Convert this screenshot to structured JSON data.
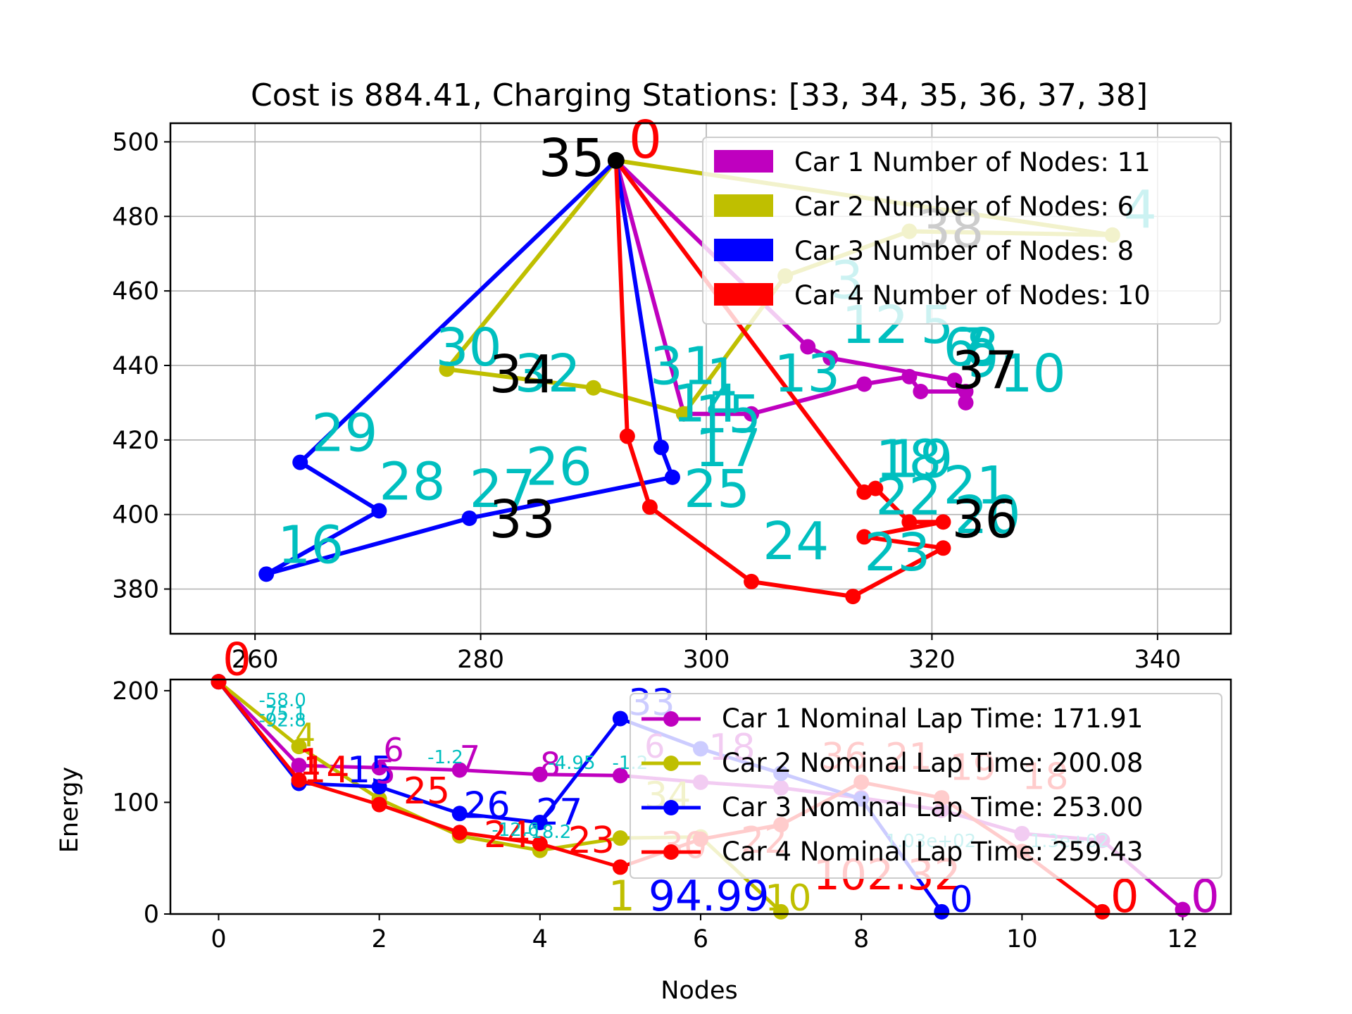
{
  "chart_data": [
    {
      "type": "scatter",
      "title": "Cost is 884.41, Charging Stations: [33, 34, 35, 36, 37, 38]",
      "xlabel": "",
      "ylabel": "",
      "xlim": [
        252.5,
        346.5
      ],
      "ylim": [
        368,
        505
      ],
      "xticks": [
        260,
        280,
        300,
        320,
        340
      ],
      "yticks": [
        380,
        400,
        420,
        440,
        460,
        480,
        500
      ],
      "grid": true,
      "legend_position": "top-right",
      "legend": [
        {
          "label": "Car 1 Number of Nodes: 11",
          "color": "#bf00bf"
        },
        {
          "label": "Car 2 Number of Nodes: 6",
          "color": "#bfbf00"
        },
        {
          "label": "Car 3 Number of Nodes: 8",
          "color": "#0000ff"
        },
        {
          "label": "Car 4 Number of Nodes: 10",
          "color": "#ff0000"
        }
      ],
      "depot": {
        "label": "0",
        "x": 292,
        "y": 495
      },
      "stations": [
        {
          "label": "33",
          "x": 280,
          "y": 398
        },
        {
          "label": "34",
          "x": 280,
          "y": 437
        },
        {
          "label": "35",
          "x": 292,
          "y": 495
        },
        {
          "label": "36",
          "x": 321,
          "y": 398
        },
        {
          "label": "37",
          "x": 321,
          "y": 438
        },
        {
          "label": "38",
          "x": 318,
          "y": 476
        }
      ],
      "series": [
        {
          "name": "Car 1 Number of Nodes: 11",
          "color": "#bf00bf",
          "route": [
            [
              292,
              495
            ],
            [
              309,
              445
            ],
            [
              311,
              442
            ],
            [
              322,
              436
            ],
            [
              323,
              430
            ],
            [
              323,
              433
            ],
            [
              319,
              433
            ],
            [
              318,
              437
            ],
            [
              314,
              435
            ],
            [
              304,
              427
            ],
            [
              298,
              427
            ],
            [
              292,
              495
            ]
          ],
          "labels": [
            {
              "text": "3",
              "x": 311,
              "y": 458
            },
            {
              "text": "12",
              "x": 312,
              "y": 446
            },
            {
              "text": "2",
              "x": 315,
              "y": 446
            },
            {
              "text": "5",
              "x": 319,
              "y": 446
            },
            {
              "text": "6",
              "x": 321,
              "y": 440
            },
            {
              "text": "7",
              "x": 322,
              "y": 440
            },
            {
              "text": "8",
              "x": 323,
              "y": 440
            },
            {
              "text": "9",
              "x": 323,
              "y": 437
            },
            {
              "text": "10",
              "x": 326,
              "y": 433
            },
            {
              "text": "13",
              "x": 306,
              "y": 433
            },
            {
              "text": "1",
              "x": 300,
              "y": 432
            }
          ]
        },
        {
          "name": "Car 2 Number of Nodes: 6",
          "color": "#bfbf00",
          "route": [
            [
              292,
              495
            ],
            [
              336,
              475
            ],
            [
              318,
              476
            ],
            [
              307,
              464
            ],
            [
              298,
              427
            ],
            [
              290,
              434
            ],
            [
              277,
              439
            ],
            [
              292,
              495
            ]
          ],
          "labels": [
            {
              "text": "4",
              "x": 337,
              "y": 477
            },
            {
              "text": "30",
              "x": 276,
              "y": 440
            },
            {
              "text": "32",
              "x": 283,
              "y": 433
            }
          ]
        },
        {
          "name": "Car 3 Number of Nodes: 8",
          "color": "#0000ff",
          "route": [
            [
              292,
              495
            ],
            [
              296,
              418
            ],
            [
              297,
              410
            ],
            [
              279,
              399
            ],
            [
              261,
              384
            ],
            [
              271,
              401
            ],
            [
              264,
              414
            ],
            [
              292,
              495
            ]
          ],
          "labels": [
            {
              "text": "31",
              "x": 295,
              "y": 435
            },
            {
              "text": "14",
              "x": 297,
              "y": 425
            },
            {
              "text": "15",
              "x": 299,
              "y": 422
            },
            {
              "text": "17",
              "x": 299,
              "y": 413
            },
            {
              "text": "25",
              "x": 298,
              "y": 402
            },
            {
              "text": "26",
              "x": 284,
              "y": 408
            },
            {
              "text": "27",
              "x": 279,
              "y": 402
            },
            {
              "text": "28",
              "x": 271,
              "y": 404
            },
            {
              "text": "29",
              "x": 265,
              "y": 417
            },
            {
              "text": "16",
              "x": 262,
              "y": 387
            }
          ]
        },
        {
          "name": "Car 4 Number of Nodes: 10",
          "color": "#ff0000",
          "route": [
            [
              292,
              495
            ],
            [
              314,
              406
            ],
            [
              315,
              407
            ],
            [
              318,
              398
            ],
            [
              321,
              398
            ],
            [
              314,
              394
            ],
            [
              321,
              391
            ],
            [
              313,
              378
            ],
            [
              304,
              382
            ],
            [
              295,
              402
            ],
            [
              293,
              421
            ],
            [
              292,
              495
            ]
          ],
          "labels": [
            {
              "text": "18",
              "x": 315,
              "y": 410
            },
            {
              "text": "19",
              "x": 316,
              "y": 410
            },
            {
              "text": "21",
              "x": 321,
              "y": 403
            },
            {
              "text": "20",
              "x": 322,
              "y": 395
            },
            {
              "text": "22",
              "x": 315,
              "y": 400
            },
            {
              "text": "23",
              "x": 314,
              "y": 385
            },
            {
              "text": "24",
              "x": 305,
              "y": 388
            }
          ]
        }
      ]
    },
    {
      "type": "line",
      "title": "",
      "xlabel": "Nodes",
      "ylabel": "Energy",
      "xlim": [
        -0.6,
        12.6
      ],
      "ylim": [
        0,
        210
      ],
      "xticks": [
        0,
        2,
        4,
        6,
        8,
        10,
        12
      ],
      "yticks": [
        0,
        100,
        200
      ],
      "grid": false,
      "legend_position": "top-right",
      "series": [
        {
          "name": "Car 1 Nominal Lap Time: 171.91",
          "color": "#bf00bf",
          "x": [
            0,
            1,
            2,
            3,
            4,
            5,
            6,
            7,
            8,
            9,
            10,
            11,
            12
          ],
          "values": [
            208,
            133,
            131,
            129,
            125,
            124,
            118,
            113,
            104,
            93,
            72,
            66,
            4
          ]
        },
        {
          "name": "Car 2 Nominal Lap Time: 200.08",
          "color": "#bfbf00",
          "x": [
            0,
            1,
            2,
            3,
            4,
            5,
            6,
            7
          ],
          "values": [
            208,
            150,
            103,
            70,
            57,
            68,
            69,
            2
          ]
        },
        {
          "name": "Car 3 Nominal Lap Time: 253.00",
          "color": "#0000ff",
          "x": [
            0,
            1,
            2,
            3,
            4,
            5,
            6,
            7,
            8,
            9
          ],
          "values": [
            208,
            117,
            114,
            90,
            82,
            175,
            148,
            126,
            103,
            2
          ]
        },
        {
          "name": "Car 4 Nominal Lap Time: 259.43",
          "color": "#ff0000",
          "x": [
            0,
            1,
            2,
            3,
            4,
            5,
            6,
            7,
            8,
            9,
            10,
            11
          ],
          "values": [
            208,
            120,
            98,
            73,
            63,
            42,
            67,
            80,
            118,
            104,
            56,
            2
          ]
        }
      ],
      "annotations": [
        {
          "text": "0",
          "x": 0.05,
          "y": 214,
          "color": "#ff0000",
          "size": 64
        },
        {
          "text": "-58.0",
          "x": 0.5,
          "y": 186,
          "color": "#00bfbf",
          "size": 26
        },
        {
          "text": "-75.1",
          "x": 0.5,
          "y": 174,
          "color": "#00bfbf",
          "size": 26
        },
        {
          "text": "-92.8",
          "x": 0.5,
          "y": 168,
          "color": "#00bfbf",
          "size": 26
        },
        {
          "text": "4",
          "x": 0.95,
          "y": 150,
          "color": "#bfbf00",
          "size": 46
        },
        {
          "text": "1",
          "x": 1.0,
          "y": 125,
          "color": "#ff0000",
          "size": 52
        },
        {
          "text": "14",
          "x": 1.05,
          "y": 118,
          "color": "#ff0000",
          "size": 52
        },
        {
          "text": "15",
          "x": 1.6,
          "y": 118,
          "color": "#0000ff",
          "size": 52
        },
        {
          "text": "5",
          "x": 1.95,
          "y": 117,
          "color": "#bf00bf",
          "size": 46
        },
        {
          "text": "6",
          "x": 2.05,
          "y": 137,
          "color": "#bf00bf",
          "size": 46
        },
        {
          "text": "7",
          "x": 3.0,
          "y": 130,
          "color": "#bf00bf",
          "size": 46
        },
        {
          "text": "8",
          "x": 4.0,
          "y": 124,
          "color": "#bf00bf",
          "size": 46
        },
        {
          "text": "25",
          "x": 2.3,
          "y": 99,
          "color": "#ff0000",
          "size": 52
        },
        {
          "text": "26",
          "x": 3.05,
          "y": 86,
          "color": "#0000ff",
          "size": 52
        },
        {
          "text": "27",
          "x": 3.95,
          "y": 80,
          "color": "#0000ff",
          "size": 52
        },
        {
          "text": "24",
          "x": 3.3,
          "y": 60,
          "color": "#ff0000",
          "size": 52
        },
        {
          "text": "23",
          "x": 4.35,
          "y": 55,
          "color": "#ff0000",
          "size": 52
        },
        {
          "text": "33",
          "x": 5.1,
          "y": 178,
          "color": "#0000ff",
          "size": 52
        },
        {
          "text": "-4.95",
          "x": 4.1,
          "y": 130,
          "color": "#00bfbf",
          "size": 26
        },
        {
          "text": "-1.2",
          "x": 4.9,
          "y": 130,
          "color": "#00bfbf",
          "size": 26
        },
        {
          "text": "-1.2",
          "x": 2.6,
          "y": 135,
          "color": "#00bfbf",
          "size": 26
        },
        {
          "text": "6",
          "x": 5.3,
          "y": 140,
          "color": "#bf00bf",
          "size": 46
        },
        {
          "text": "18",
          "x": 6.1,
          "y": 138,
          "color": "#bf00bf",
          "size": 52
        },
        {
          "text": "36",
          "x": 7.5,
          "y": 130,
          "color": "#ff0000",
          "size": 52
        },
        {
          "text": "21",
          "x": 8.3,
          "y": 130,
          "color": "#ff0000",
          "size": 52
        },
        {
          "text": "19",
          "x": 9.1,
          "y": 120,
          "color": "#ff0000",
          "size": 52
        },
        {
          "text": "18",
          "x": 10.0,
          "y": 112,
          "color": "#ff0000",
          "size": 52
        },
        {
          "text": "34",
          "x": 5.3,
          "y": 95,
          "color": "#bfbf00",
          "size": 52
        },
        {
          "text": "30",
          "x": 5.5,
          "y": 50,
          "color": "#ff0000",
          "size": 52
        },
        {
          "text": "22",
          "x": 6.5,
          "y": 55,
          "color": "#ff0000",
          "size": 52
        },
        {
          "text": "102.32",
          "x": 7.4,
          "y": 22,
          "color": "#ff0000",
          "size": 60
        },
        {
          "text": "94.99",
          "x": 5.35,
          "y": 3,
          "color": "#0000ff",
          "size": 60
        },
        {
          "text": "10",
          "x": 6.8,
          "y": 3,
          "color": "#bfbf00",
          "size": 52
        },
        {
          "text": "1",
          "x": 4.85,
          "y": 3,
          "color": "#bfbf00",
          "size": 60
        },
        {
          "text": "0",
          "x": 9.1,
          "y": 2,
          "color": "#0000ff",
          "size": 52
        },
        {
          "text": "0",
          "x": 11.1,
          "y": 2,
          "color": "#ff0000",
          "size": 64
        },
        {
          "text": "0",
          "x": 12.1,
          "y": 2,
          "color": "#bf00bf",
          "size": 64
        },
        {
          "text": "1.03e+02",
          "x": 8.3,
          "y": 60,
          "color": "#00bfbf",
          "size": 26
        },
        {
          "text": "1.3e+02",
          "x": 10.1,
          "y": 60,
          "color": "#00bfbf",
          "size": 26
        },
        {
          "text": "-18.2",
          "x": 3.8,
          "y": 68,
          "color": "#00bfbf",
          "size": 26
        },
        {
          "text": "-12.6",
          "x": 3.4,
          "y": 70,
          "color": "#00bfbf",
          "size": 26
        }
      ],
      "legend": [
        {
          "label": "Car 1 Nominal Lap Time: 171.91",
          "color": "#bf00bf"
        },
        {
          "label": "Car 2 Nominal Lap Time: 200.08",
          "color": "#bfbf00"
        },
        {
          "label": "Car 3 Nominal Lap Time: 253.00",
          "color": "#0000ff"
        },
        {
          "label": "Car 4 Nominal Lap Time: 259.43",
          "color": "#ff0000"
        }
      ]
    }
  ]
}
